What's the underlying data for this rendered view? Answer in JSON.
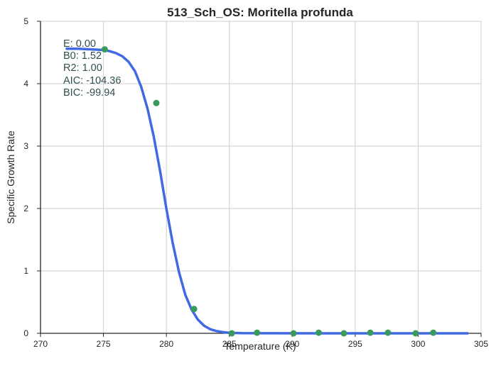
{
  "chart_data": {
    "type": "scatter",
    "title": "513_Sch_OS: Moritella profunda",
    "xlabel": "Temperature (K)",
    "ylabel": "Specific Growth Rate",
    "xlim": [
      270,
      305
    ],
    "ylim": [
      0,
      5
    ],
    "xticks": [
      270,
      275,
      280,
      285,
      290,
      295,
      300,
      305
    ],
    "yticks": [
      0,
      1,
      2,
      3,
      4,
      5
    ],
    "grid": true,
    "colors": {
      "points": "#3a9a5b",
      "fit_line": "#4169e1",
      "annotation": "#2f4f4f"
    },
    "points": {
      "x": [
        275.1,
        279.2,
        282.2,
        285.2,
        287.2,
        290.1,
        292.1,
        294.1,
        296.2,
        297.6,
        299.8,
        301.2
      ],
      "y": [
        4.55,
        3.69,
        0.39,
        0.0,
        0.01,
        0.0,
        0.01,
        0.0,
        0.01,
        0.01,
        0.0,
        0.01
      ]
    },
    "fit": {
      "x": [
        272.0,
        273.0,
        274.0,
        275.0,
        275.5,
        276.0,
        276.5,
        277.0,
        277.5,
        278.0,
        278.5,
        279.0,
        279.5,
        280.0,
        280.5,
        281.0,
        281.5,
        282.0,
        282.5,
        283.0,
        283.5,
        284.0,
        284.5,
        285.0,
        286.0,
        288.0,
        292.0,
        296.0,
        300.0,
        304.0
      ],
      "y": [
        4.56,
        4.56,
        4.55,
        4.54,
        4.52,
        4.49,
        4.44,
        4.35,
        4.2,
        3.95,
        3.6,
        3.15,
        2.6,
        2.0,
        1.45,
        0.98,
        0.62,
        0.38,
        0.22,
        0.12,
        0.065,
        0.035,
        0.018,
        0.009,
        0.003,
        0.001,
        0.0,
        0.0,
        0.0,
        0.0
      ]
    },
    "annotations": [
      "E:  0.00",
      "B0:  1.52",
      "R2:  1.00",
      "AIC: -104.36",
      "BIC: -99.94"
    ]
  }
}
